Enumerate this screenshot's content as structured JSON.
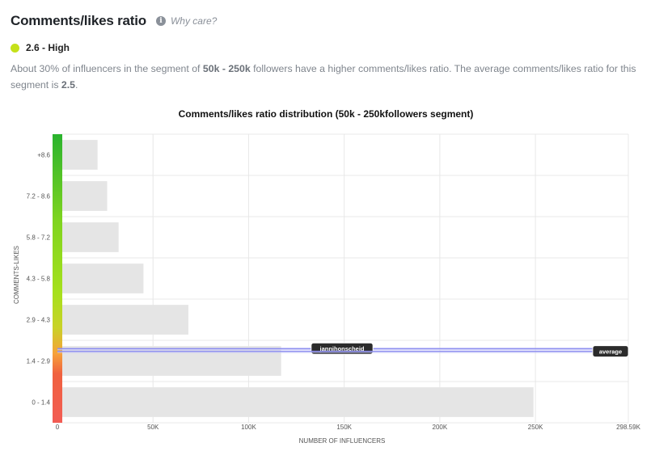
{
  "header": {
    "title": "Comments/likes ratio",
    "info_icon": "info-icon",
    "why_care": "Why care?"
  },
  "status": {
    "label": "2.6 - High",
    "dot_color": "#c5e11a"
  },
  "description": {
    "part1": "About 30% of influencers in the segment of ",
    "segment": "50k - 250k",
    "part2": " followers have a higher comments/likes ratio. The average comments/likes ratio for this segment is ",
    "average": "2.5",
    "part3": "."
  },
  "chart_data": {
    "type": "bar",
    "orientation": "horizontal",
    "title": "Comments/likes ratio distribution (50k - 250kfollowers segment)",
    "xlabel": "NUMBER OF INFLUENCERS",
    "ylabel": "COMMENTS-LIKES",
    "categories": [
      "+8.6",
      "7.2 - 8.6",
      "5.8 - 7.2",
      "4.3 - 5.8",
      "2.9 - 4.3",
      "1.4 - 2.9",
      "0 - 1.4"
    ],
    "values": [
      21000,
      26000,
      32000,
      45000,
      68500,
      117000,
      249000
    ],
    "xlim": [
      0,
      298590
    ],
    "xticks": [
      0,
      50000,
      100000,
      150000,
      200000,
      250000,
      298590
    ],
    "xtick_labels": [
      "0",
      "50K",
      "100K",
      "150K",
      "200K",
      "250K",
      "298.59K"
    ],
    "bar_color": "#e5e5e5",
    "grid": true,
    "markers": [
      {
        "label": "jannihonscheid",
        "value": 2.6
      },
      {
        "label": "average",
        "value": 2.5
      }
    ],
    "marker_line_color": "#8e8ff0",
    "gradient_colors": [
      "#f25c54",
      "#f6a23a",
      "#a6e01c",
      "#2ab32e"
    ]
  }
}
